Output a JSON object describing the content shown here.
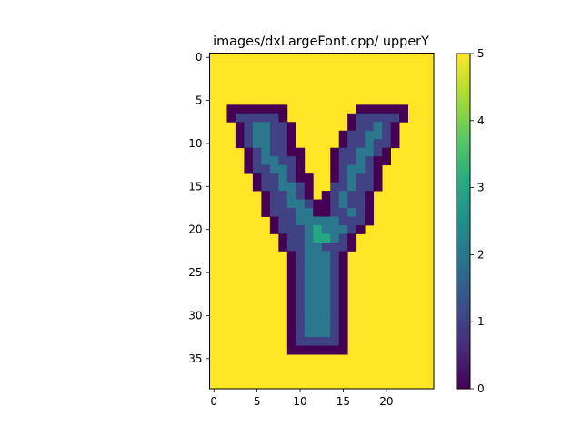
{
  "chart_data": {
    "type": "heatmap",
    "title": "images/dxLargeFont.cpp/ upperY",
    "xlabel": "",
    "ylabel": "",
    "n_cols": 26,
    "n_rows": 39,
    "x_ticks": [
      0,
      5,
      10,
      15,
      20
    ],
    "y_ticks": [
      0,
      5,
      10,
      15,
      20,
      25,
      30,
      35
    ],
    "colorbar": {
      "min": 0,
      "max": 5,
      "ticks": [
        0,
        1,
        2,
        3,
        4,
        5
      ]
    },
    "colormap": "viridis",
    "background_value": 5,
    "rows": [
      "55555555555555555555555555",
      "55555555555555555555555555",
      "55555555555555555555555555",
      "55555555555555555555555555",
      "55555555555555555555555555",
      "55555555555555555555555555",
      "55000000055555555000000555",
      "55011111055555550111110555",
      "55501221105555550112105555",
      "55501221105555501122105555",
      "55501221105555501121105555",
      "55550121100555011221055555",
      "55550122110555011210055555",
      "55550112210555012210555555",
      "55555011210055012110555555",
      "55555011221055112110555555",
      "55555501121050121105555555",
      "55555501122100121105555555",
      "55555501112200112105555555",
      "55555550112222211105555555",
      "55555550111232221055555555",
      "55555555011233210555555555",
      "55555555011221110555555555",
      "55555555501222105555555555",
      "55555555501222105555555555",
      "55555555501222105555555555",
      "55555555501222105555555555",
      "55555555501222105555555555",
      "55555555501222105555555555",
      "55555555501222105555555555",
      "55555555501222105555555555",
      "55555555501222105555555555",
      "55555555501222105555555555",
      "55555555501111105555555555",
      "55555555500000005555555555",
      "55555555555555555555555555",
      "55555555555555555555555555",
      "55555555555555555555555555",
      "55555555555555555555555555"
    ]
  }
}
